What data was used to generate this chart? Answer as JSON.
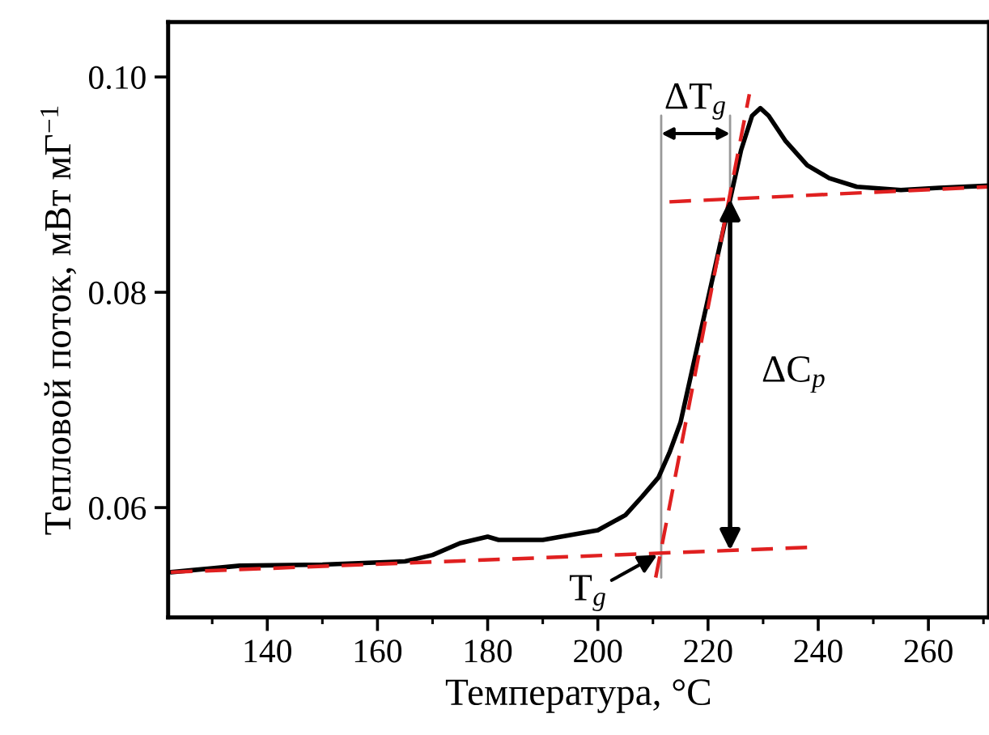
{
  "chart_data": {
    "type": "line",
    "xlabel": "Температура, °C",
    "ylabel": "Тепловой поток, мВт мГ$^{−1}$",
    "xlim": [
      122,
      271
    ],
    "ylim": [
      0.0498,
      0.1051
    ],
    "xticks": [
      {
        "value": 130,
        "label": null
      },
      140,
      {
        "value": 150,
        "label": null
      },
      160,
      {
        "value": 170,
        "label": null
      },
      180,
      {
        "value": 190,
        "label": null
      },
      200,
      {
        "value": 210,
        "label": null
      },
      220,
      {
        "value": 230,
        "label": null
      },
      240,
      {
        "value": 250,
        "label": null
      },
      260,
      {
        "value": 270,
        "label": null
      }
    ],
    "yticks": [
      {
        "value": 0.06,
        "label": "0.06"
      },
      {
        "value": 0.08,
        "label": "0.08"
      },
      {
        "value": 0.1,
        "label": "0.10"
      }
    ],
    "grid": false,
    "legend": false,
    "series": [
      {
        "color": "#999999",
        "line_style": "solid",
        "x": [
          211.5,
          211.5
        ],
        "values": [
          0.0535,
          0.0964
        ]
      },
      {
        "color": "#999999",
        "line_style": "solid",
        "x": [
          224,
          224
        ],
        "values": [
          0.0886,
          0.0964
        ]
      },
      {
        "color": "#000000",
        "line_style": "solid",
        "x": [
          122.5,
          135,
          150,
          165,
          170,
          175,
          180,
          182,
          190,
          200,
          205,
          208,
          211,
          213,
          215,
          218,
          220,
          222,
          224,
          226,
          228,
          229.5,
          231,
          234,
          238,
          242,
          247,
          255,
          262,
          271
        ],
        "values": [
          0.054,
          0.0546,
          0.0547,
          0.055,
          0.0556,
          0.0567,
          0.0573,
          0.057,
          0.057,
          0.0579,
          0.0593,
          0.061,
          0.0628,
          0.0651,
          0.0679,
          0.0748,
          0.0794,
          0.084,
          0.0886,
          0.0932,
          0.0964,
          0.0971,
          0.0964,
          0.0941,
          0.0918,
          0.0906,
          0.0898,
          0.0895,
          0.0897,
          0.0899
        ]
      },
      {
        "color": "#e02020",
        "line_style": "dashed",
        "x": [
          122.5,
          238
        ],
        "values": [
          0.054,
          0.0563
        ]
      },
      {
        "color": "#e02020",
        "line_style": "dashed",
        "x": [
          210.5,
          227.5
        ],
        "values": [
          0.0535,
          0.0984
        ]
      },
      {
        "color": "#e02020",
        "line_style": "dashed",
        "x": [
          213,
          271
        ],
        "values": [
          0.0884,
          0.0898
        ]
      }
    ],
    "annotations": [
      "ΔT$_{g}$",
      "ΔC$_{p}$",
      {
        "text": "T$_{g}$",
        "x": 211.5,
        "y": 0.0558
      }
    ]
  }
}
